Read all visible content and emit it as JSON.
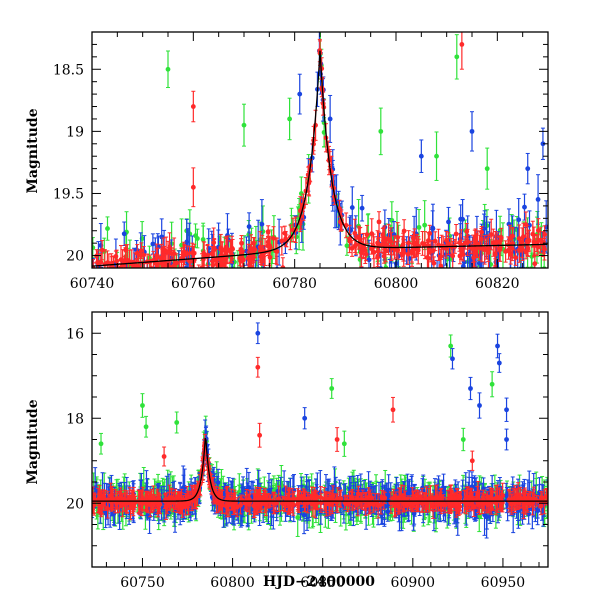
{
  "chart_data": [
    {
      "type": "scatter",
      "title": "",
      "xlabel": "",
      "ylabel": "Magnitude",
      "xlim": [
        60740,
        60830
      ],
      "ylim": [
        20.1,
        18.2
      ],
      "y_inverted": true,
      "xticks": [
        60740,
        60760,
        60780,
        60800,
        60820
      ],
      "xtick_labels": [
        "60740",
        "60760",
        "60780",
        "60800",
        "60820"
      ],
      "yticks": [
        18.5,
        19.0,
        19.5,
        20.0
      ],
      "ytick_labels": [
        "18.5",
        "19",
        "19.5",
        "20"
      ],
      "model_curve": {
        "t0": 60785,
        "baseline": 19.95,
        "slope_per_day": 0.003,
        "peak_mag": 18.35,
        "width_days": 2.2,
        "color": "#000000"
      },
      "series": [
        {
          "name": "blue",
          "color": "#1a44e0",
          "n_points": 170,
          "outliers": [
            {
              "x": 60781,
              "y": 18.7
            },
            {
              "x": 60787,
              "y": 18.9
            },
            {
              "x": 60805,
              "y": 19.2
            },
            {
              "x": 60815,
              "y": 19.0
            },
            {
              "x": 60826,
              "y": 19.3
            },
            {
              "x": 60829,
              "y": 19.1
            }
          ]
        },
        {
          "name": "green",
          "color": "#2fe23a",
          "n_points": 130,
          "outliers": [
            {
              "x": 60755,
              "y": 18.5
            },
            {
              "x": 60770,
              "y": 18.95
            },
            {
              "x": 60779,
              "y": 18.9
            },
            {
              "x": 60797,
              "y": 19.0
            },
            {
              "x": 60808,
              "y": 19.2
            },
            {
              "x": 60812,
              "y": 18.4
            },
            {
              "x": 60818,
              "y": 19.3
            }
          ]
        },
        {
          "name": "red",
          "color": "#ff2a2a",
          "n_points": 360,
          "outliers": [
            {
              "x": 60760,
              "y": 18.8
            },
            {
              "x": 60760,
              "y": 19.45
            },
            {
              "x": 60813,
              "y": 18.3
            }
          ]
        }
      ]
    },
    {
      "type": "scatter",
      "title": "",
      "xlabel": "HJD−2400000",
      "ylabel": "Magnitude",
      "xlim": [
        60722,
        60975
      ],
      "ylim": [
        21.5,
        15.5
      ],
      "y_inverted": true,
      "xticks": [
        60750,
        60800,
        60850,
        60900,
        60950
      ],
      "xtick_labels": [
        "60750",
        "60800",
        "60850",
        "60900",
        "60950"
      ],
      "yticks": [
        16,
        18,
        20
      ],
      "ytick_labels": [
        "16",
        "18",
        "20"
      ],
      "model_curve": {
        "t0": 60785,
        "baseline": 19.95,
        "slope_per_day": 0.0,
        "peak_mag": 18.35,
        "width_days": 2.2,
        "color": "#000000"
      },
      "series": [
        {
          "name": "blue",
          "color": "#1a44e0",
          "n_points": 420,
          "outliers": [
            {
              "x": 60814,
              "y": 16.0
            },
            {
              "x": 60922,
              "y": 16.6
            },
            {
              "x": 60932,
              "y": 17.3
            },
            {
              "x": 60937,
              "y": 17.7
            },
            {
              "x": 60947,
              "y": 16.3
            },
            {
              "x": 60948,
              "y": 16.7
            },
            {
              "x": 60952,
              "y": 17.8
            },
            {
              "x": 60952,
              "y": 18.5
            },
            {
              "x": 60840,
              "y": 18.0
            }
          ]
        },
        {
          "name": "green",
          "color": "#2fe23a",
          "n_points": 380,
          "outliers": [
            {
              "x": 60727,
              "y": 18.6
            },
            {
              "x": 60750,
              "y": 17.7
            },
            {
              "x": 60752,
              "y": 18.2
            },
            {
              "x": 60769,
              "y": 18.1
            },
            {
              "x": 60855,
              "y": 17.3
            },
            {
              "x": 60921,
              "y": 16.3
            },
            {
              "x": 60944,
              "y": 17.2
            },
            {
              "x": 60928,
              "y": 18.5
            },
            {
              "x": 60862,
              "y": 18.6
            }
          ]
        },
        {
          "name": "red",
          "color": "#ff2a2a",
          "n_points": 520,
          "outliers": [
            {
              "x": 60762,
              "y": 18.9
            },
            {
              "x": 60814,
              "y": 16.8
            },
            {
              "x": 60815,
              "y": 18.4
            },
            {
              "x": 60889,
              "y": 17.8
            },
            {
              "x": 60858,
              "y": 18.5
            },
            {
              "x": 60933,
              "y": 19.0
            }
          ]
        }
      ]
    }
  ]
}
